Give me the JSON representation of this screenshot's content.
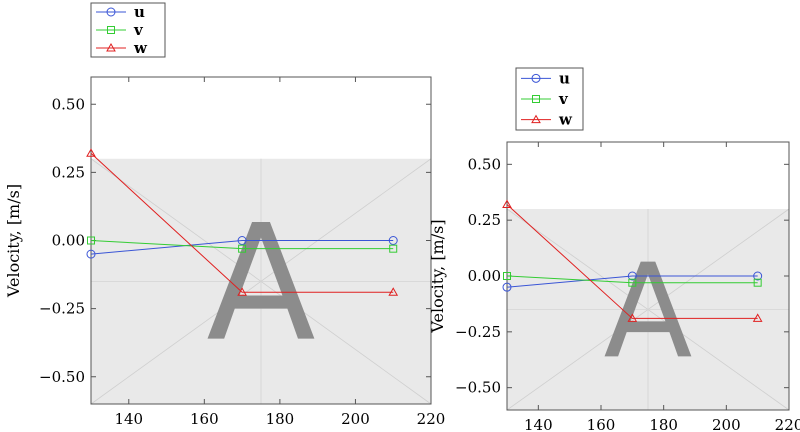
{
  "chart_data": [
    {
      "type": "line",
      "title": "",
      "xlabel": "",
      "ylabel": "Velocity, [m/s]",
      "xlim": [
        130,
        220
      ],
      "ylim": [
        -0.6,
        0.6
      ],
      "xticks": [
        140,
        160,
        180,
        200,
        220
      ],
      "yticks": [
        -0.5,
        -0.25,
        0,
        0.25,
        0.5
      ],
      "ytick_labels": [
        "−0.50",
        "−0.25",
        "0.00",
        "0.25",
        "0.50"
      ],
      "legend_position": "top-left",
      "shaded_band": [
        -0.6,
        0.3
      ],
      "watermark": "A",
      "x": [
        130,
        170,
        210
      ],
      "series": [
        {
          "name": "u",
          "values": [
            -0.05,
            0.0,
            0.0
          ],
          "color": "#3a55d6",
          "marker": "circle"
        },
        {
          "name": "v",
          "values": [
            0.0,
            -0.03,
            -0.03
          ],
          "color": "#33cc33",
          "marker": "square"
        },
        {
          "name": "w",
          "values": [
            0.32,
            -0.19,
            -0.19
          ],
          "color": "#e02020",
          "marker": "triangle"
        }
      ]
    },
    {
      "type": "line",
      "title": "",
      "xlabel": "",
      "ylabel": "Velocity, [m/s]",
      "xlim": [
        130,
        220
      ],
      "ylim": [
        -0.6,
        0.6
      ],
      "xticks": [
        140,
        160,
        180,
        200,
        220
      ],
      "yticks": [
        -0.5,
        -0.25,
        0,
        0.25,
        0.5
      ],
      "ytick_labels": [
        "−0.50",
        "−0.25",
        "0.00",
        "0.25",
        "0.50"
      ],
      "legend_position": "top-left",
      "shaded_band": [
        -0.6,
        0.3
      ],
      "watermark": "A",
      "x": [
        130,
        170,
        210
      ],
      "series": [
        {
          "name": "u",
          "values": [
            -0.05,
            0.0,
            0.0
          ],
          "color": "#3a55d6",
          "marker": "circle"
        },
        {
          "name": "v",
          "values": [
            0.0,
            -0.03,
            -0.03
          ],
          "color": "#33cc33",
          "marker": "square"
        },
        {
          "name": "w",
          "values": [
            0.32,
            -0.19,
            -0.19
          ],
          "color": "#e02020",
          "marker": "triangle"
        }
      ]
    }
  ]
}
